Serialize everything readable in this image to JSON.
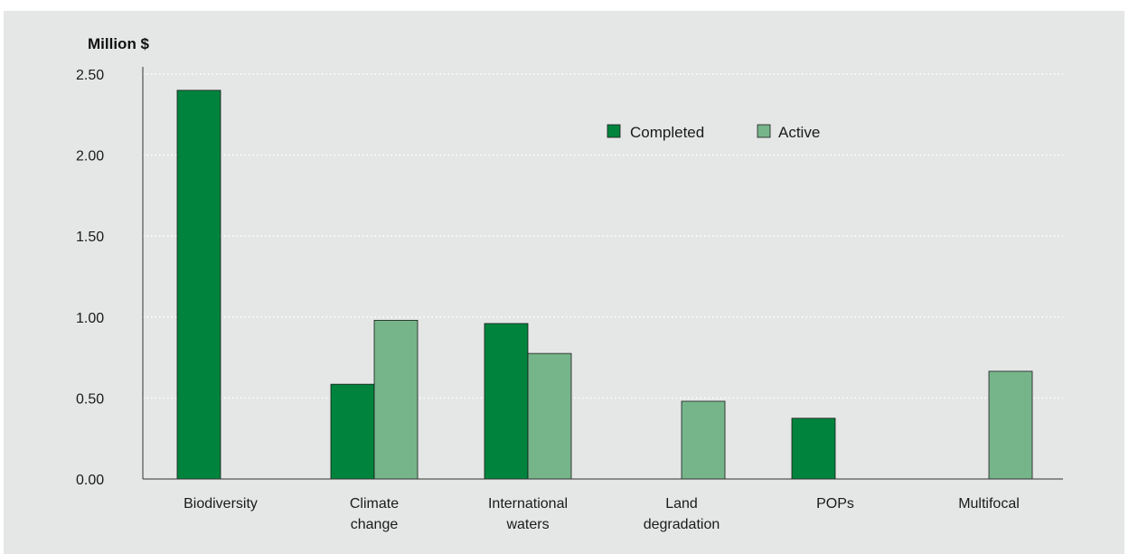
{
  "chart_data": {
    "type": "bar",
    "title": "",
    "ylabel": "Million $",
    "xlabel": "",
    "ylim": [
      0,
      2.5
    ],
    "yticks": [
      "0.00",
      "0.50",
      "1.00",
      "1.50",
      "2.00",
      "2.50"
    ],
    "ytick_values": [
      0,
      0.5,
      1.0,
      1.5,
      2.0,
      2.5
    ],
    "grid": true,
    "legend_position": "top-right",
    "categories": [
      [
        "Biodiversity"
      ],
      [
        "Climate",
        "change"
      ],
      [
        "International",
        "waters"
      ],
      [
        "Land",
        "degradation"
      ],
      [
        "POPs"
      ],
      [
        "Multifocal"
      ]
    ],
    "series": [
      {
        "name": "Completed",
        "color": "#00843d",
        "values": [
          2.4,
          0.585,
          0.96,
          null,
          0.375,
          null
        ]
      },
      {
        "name": "Active",
        "color": "#76b58a",
        "values": [
          null,
          0.98,
          0.775,
          0.48,
          null,
          0.665
        ]
      }
    ]
  }
}
